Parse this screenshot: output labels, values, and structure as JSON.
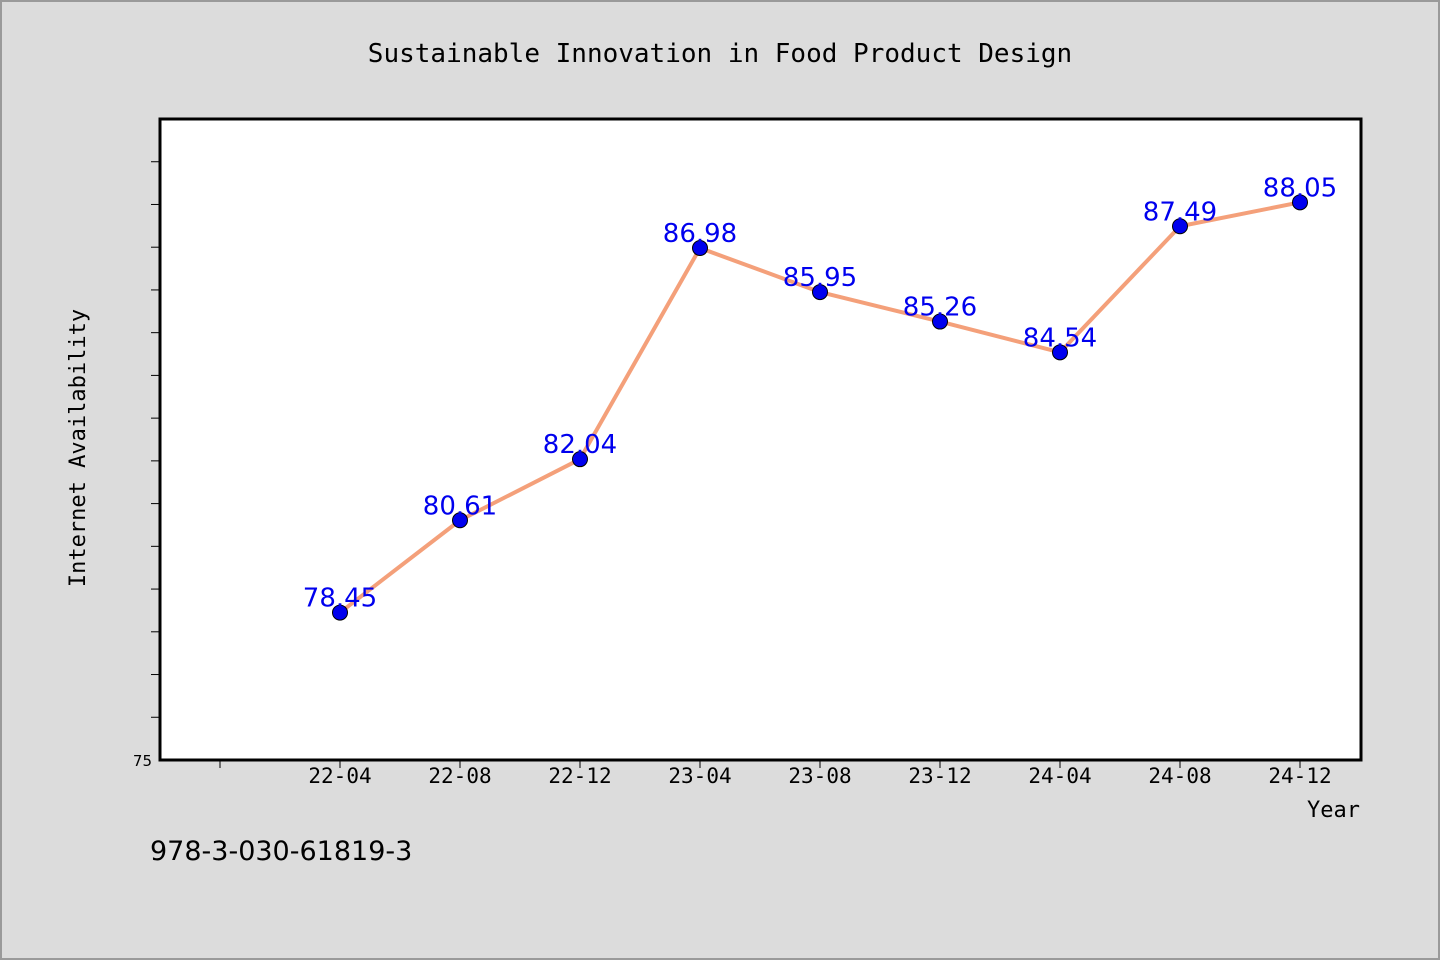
{
  "chart_data": {
    "type": "line",
    "title": "Sustainable Innovation in Food Product Design",
    "xlabel": "Year",
    "ylabel": "Internet Availability",
    "categories": [
      "22-04",
      "22-08",
      "22-12",
      "23-04",
      "23-08",
      "23-12",
      "24-04",
      "24-08",
      "24-12"
    ],
    "series": [
      {
        "values": [
          78.45,
          80.61,
          82.04,
          86.98,
          85.95,
          85.26,
          84.54,
          87.49,
          88.05
        ]
      }
    ],
    "data_labels": [
      "78.45",
      "80.61",
      "82.04",
      "86.98",
      "85.95",
      "85.26",
      "84.54",
      "87.49",
      "88.05"
    ],
    "ylim": [
      75,
      90
    ],
    "y_ticks_labeled": [
      "75"
    ],
    "grid": false,
    "legend": "none",
    "colors": {
      "line": "#f4a07a",
      "marker": "#0000ee",
      "label": "#0000ee",
      "background": "#dcdcdc",
      "plot_background": "#ffffff"
    }
  },
  "footer": {
    "identifier": "978-3-030-61819-3"
  }
}
